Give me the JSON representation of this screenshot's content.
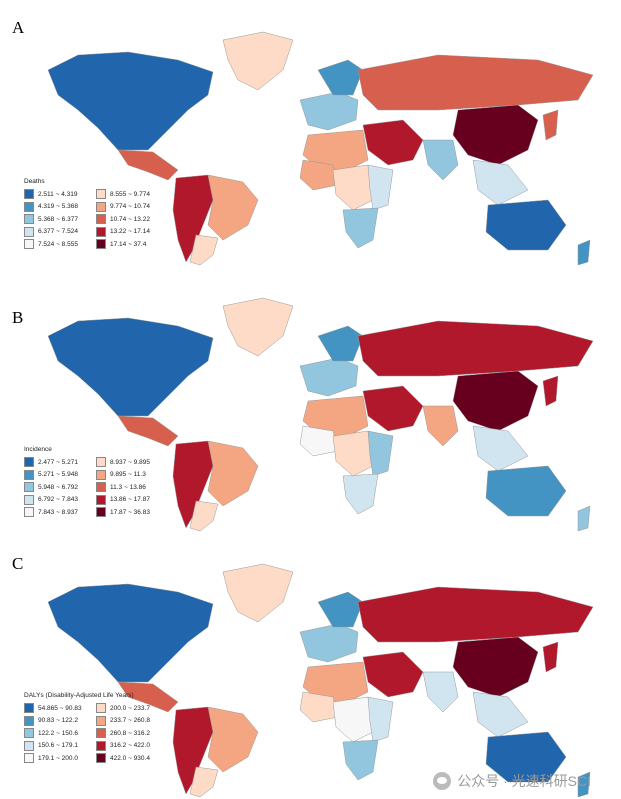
{
  "colors": {
    "dark_blue": "#2166ac",
    "blue": "#4393c3",
    "light_blue": "#92c5de",
    "pale_blue": "#d1e5f0",
    "white": "#f7f7f7",
    "peach": "#fddbc7",
    "salmon": "#f4a582",
    "orange_red": "#d6604d",
    "red": "#b2182b",
    "maroon": "#67001f"
  },
  "panels": [
    {
      "letter": "A",
      "legend_title": "Deaths",
      "legend": [
        "2.511 ~ 4.319",
        "4.319 ~ 5.368",
        "5.368 ~ 6.377",
        "6.377 ~ 7.524",
        "7.524 ~ 8.555",
        "8.555 ~ 9.774",
        "9.774 ~ 10.74",
        "10.74 ~ 13.22",
        "13.22 ~ 17.14",
        "17.14 ~ 37.4"
      ],
      "regions": {
        "north_america": 0,
        "greenland": 5,
        "central_america": 7,
        "south_america_west": 8,
        "brazil": 6,
        "argentina": 5,
        "europe_west": 2,
        "scandinavia": 1,
        "russia": 7,
        "china": 9,
        "middle_east": 8,
        "north_africa": 6,
        "west_africa": 6,
        "central_africa": 5,
        "east_africa": 3,
        "southern_africa": 2,
        "india": 2,
        "southeast_asia": 3,
        "japan": 7,
        "australia": 0,
        "new_zealand": 1
      }
    },
    {
      "letter": "B",
      "legend_title": "Incidence",
      "legend": [
        "2.477 ~ 5.271",
        "5.271 ~ 5.948",
        "5.948 ~ 6.792",
        "6.792 ~ 7.843",
        "7.843 ~ 8.937",
        "8.937 ~ 9.895",
        "9.895 ~ 11.3",
        "11.3 ~ 13.86",
        "13.86 ~ 17.87",
        "17.87 ~ 36.83"
      ],
      "regions": {
        "north_america": 0,
        "greenland": 5,
        "central_america": 7,
        "south_america_west": 8,
        "brazil": 6,
        "argentina": 5,
        "europe_west": 2,
        "scandinavia": 1,
        "russia": 8,
        "china": 9,
        "middle_east": 8,
        "north_africa": 6,
        "west_africa": 4,
        "central_africa": 5,
        "east_africa": 2,
        "southern_africa": 3,
        "india": 6,
        "southeast_asia": 3,
        "japan": 8,
        "australia": 1,
        "new_zealand": 2
      }
    },
    {
      "letter": "C",
      "legend_title": "DALYs (Disability-Adjusted Life Years)",
      "legend": [
        "54.865 ~ 90.83",
        "90.83 ~ 122.2",
        "122.2 ~ 150.6",
        "150.6 ~ 179.1",
        "179.1 ~ 200.0",
        "200.0 ~ 233.7",
        "233.7 ~ 260.8",
        "260.8 ~ 316.2",
        "316.2 ~ 422.0",
        "422.0 ~ 930.4"
      ],
      "regions": {
        "north_america": 0,
        "greenland": 5,
        "central_america": 7,
        "south_america_west": 8,
        "brazil": 6,
        "argentina": 5,
        "europe_west": 2,
        "scandinavia": 1,
        "russia": 8,
        "china": 9,
        "middle_east": 8,
        "north_africa": 6,
        "west_africa": 5,
        "central_africa": 4,
        "east_africa": 3,
        "southern_africa": 2,
        "india": 3,
        "southeast_asia": 3,
        "japan": 8,
        "australia": 0,
        "new_zealand": 1
      }
    }
  ],
  "watermark": {
    "text": "公众号 · 光速科研SCI",
    "icon": "wechat-icon"
  }
}
